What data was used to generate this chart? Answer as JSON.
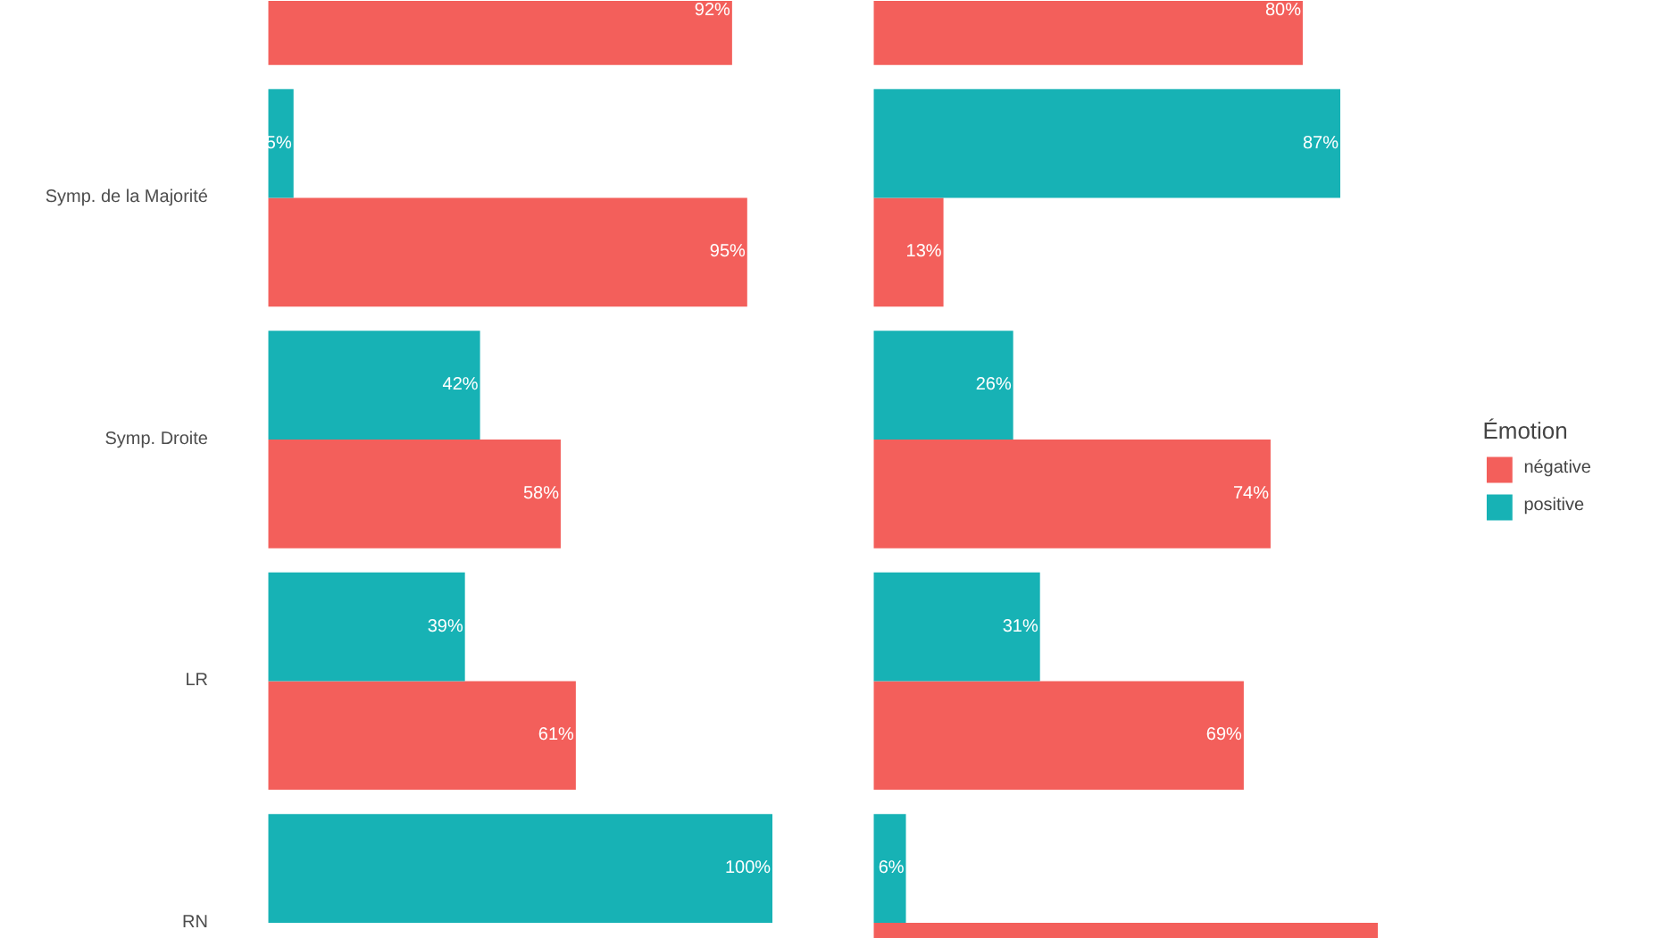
{
  "chart_data": [
    {
      "type": "bar",
      "orientation": "horizontal",
      "categories": [
        null,
        "Symp. de la Majorité",
        "Symp. Droite",
        "LR",
        "RN"
      ],
      "tick_labels": "y",
      "legend": false,
      "series": [
        {
          "color": "#f35f5b",
          "values": [
            92,
            95,
            58,
            61,
            null
          ],
          "value_labels": [
            "92%",
            "95%",
            "58%",
            "61%",
            null
          ]
        },
        {
          "color": "#17b2b5",
          "values": [
            null,
            5,
            42,
            39,
            100
          ],
          "value_labels": [
            null,
            "5%",
            "42%",
            "39%",
            "100%"
          ]
        }
      ]
    },
    {
      "type": "bar",
      "orientation": "horizontal",
      "categories": [
        null,
        null,
        null,
        null,
        null
      ],
      "tick_labels": false,
      "legend": "right",
      "legend_title": "Émotion",
      "series": [
        {
          "name": "négative",
          "color": "#f35f5b",
          "values": [
            80,
            13,
            74,
            69,
            94
          ],
          "value_labels": [
            "80%",
            "13%",
            "74%",
            "69%",
            null
          ]
        },
        {
          "name": "positive",
          "color": "#17b2b5",
          "values": [
            null,
            87,
            26,
            31,
            6
          ],
          "value_labels": [
            null,
            "87%",
            "26%",
            "31%",
            "6%"
          ]
        }
      ]
    }
  ]
}
